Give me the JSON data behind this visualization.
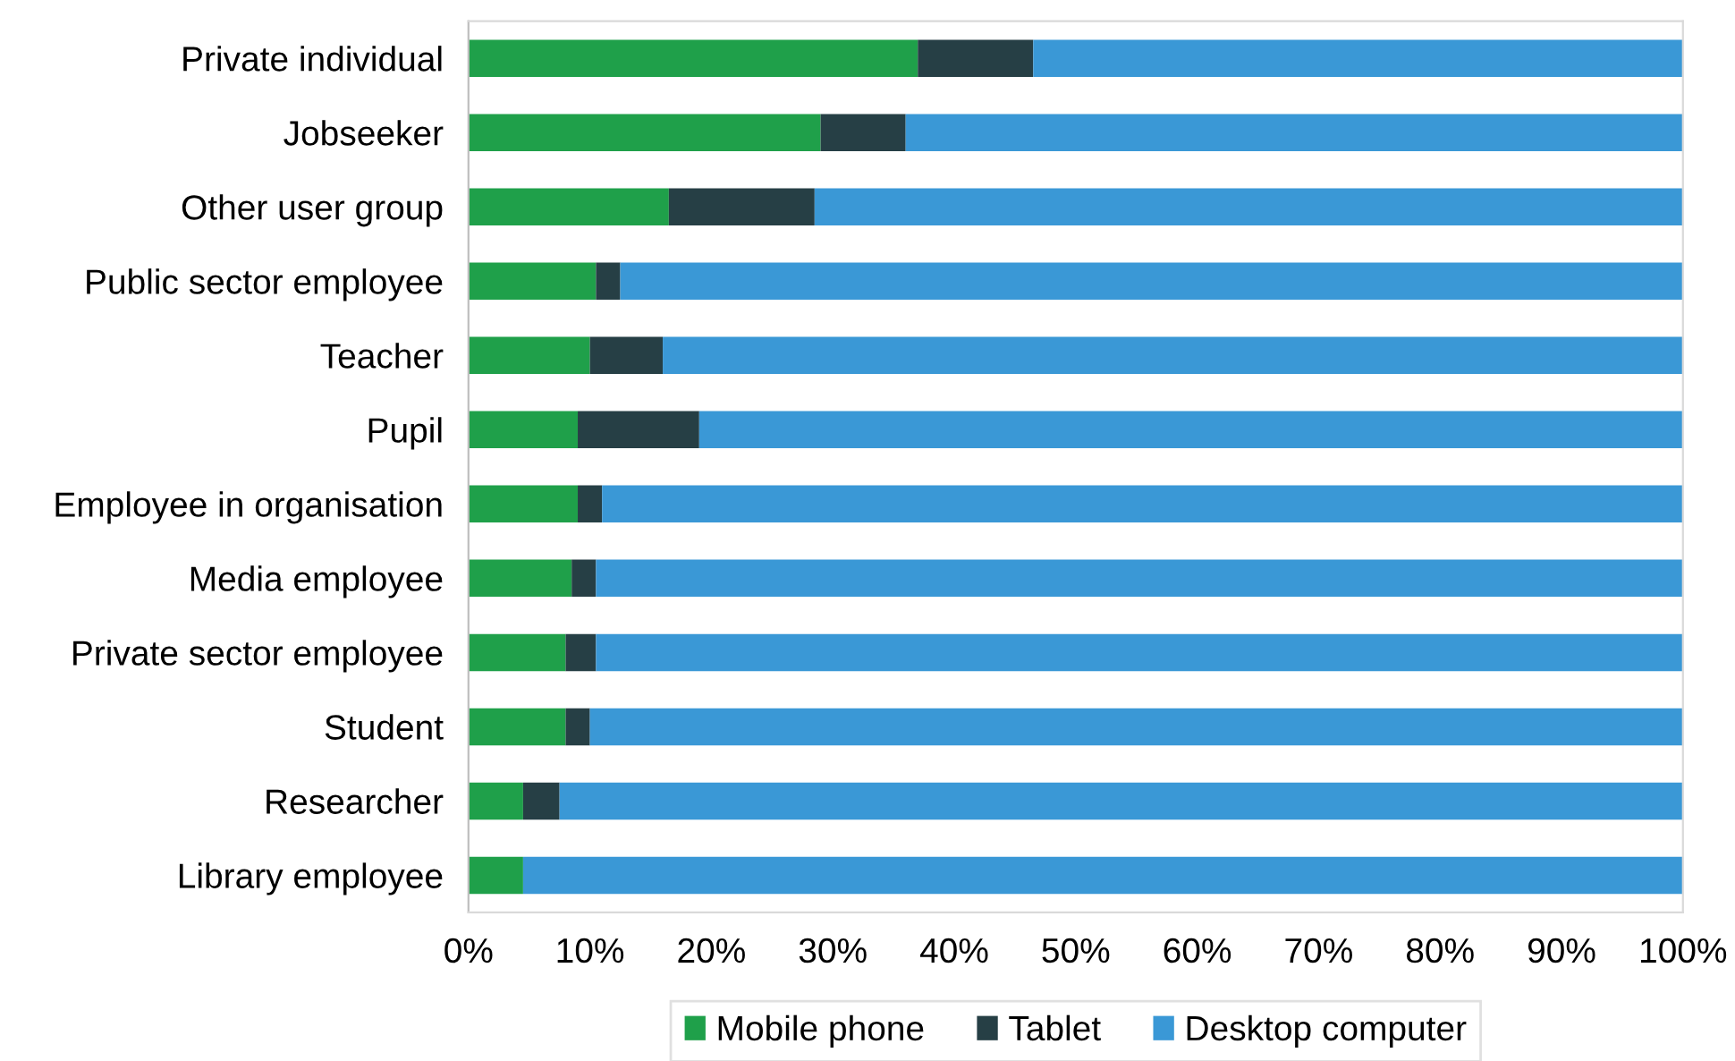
{
  "chart_data": {
    "type": "bar",
    "orientation": "horizontal",
    "stacked": true,
    "categories": [
      "Private individual",
      "Jobseeker",
      "Other user group",
      "Public sector employee",
      "Teacher",
      "Pupil",
      "Employee in organisation",
      "Media employee",
      "Private sector employee",
      "Student",
      "Researcher",
      "Library employee"
    ],
    "series": [
      {
        "name": "Mobile phone",
        "color": "#1fa04a",
        "values": [
          37,
          29,
          16.5,
          10.5,
          10,
          9,
          9,
          8.5,
          8,
          8,
          4.5,
          4.5
        ]
      },
      {
        "name": "Tablet",
        "color": "#263f45",
        "values": [
          9.5,
          7,
          12,
          2,
          6,
          10,
          2,
          2,
          2.5,
          2,
          3,
          0
        ]
      },
      {
        "name": "Desktop computer",
        "color": "#3a98d6",
        "values": [
          53.5,
          64,
          71.5,
          87.5,
          84,
          81,
          89,
          89.5,
          89.5,
          90,
          92.5,
          95.5
        ]
      }
    ],
    "xlim": [
      0,
      100
    ],
    "xticks": [
      {
        "value": 0,
        "label": "0%"
      },
      {
        "value": 10,
        "label": "10%"
      },
      {
        "value": 20,
        "label": "20%"
      },
      {
        "value": 30,
        "label": "30%"
      },
      {
        "value": 40,
        "label": "40%"
      },
      {
        "value": 50,
        "label": "50%"
      },
      {
        "value": 60,
        "label": "60%"
      },
      {
        "value": 70,
        "label": "70%"
      },
      {
        "value": 80,
        "label": "80%"
      },
      {
        "value": 90,
        "label": "90%"
      },
      {
        "value": 100,
        "label": "100%"
      }
    ],
    "grid": false,
    "legend": "bottom"
  }
}
